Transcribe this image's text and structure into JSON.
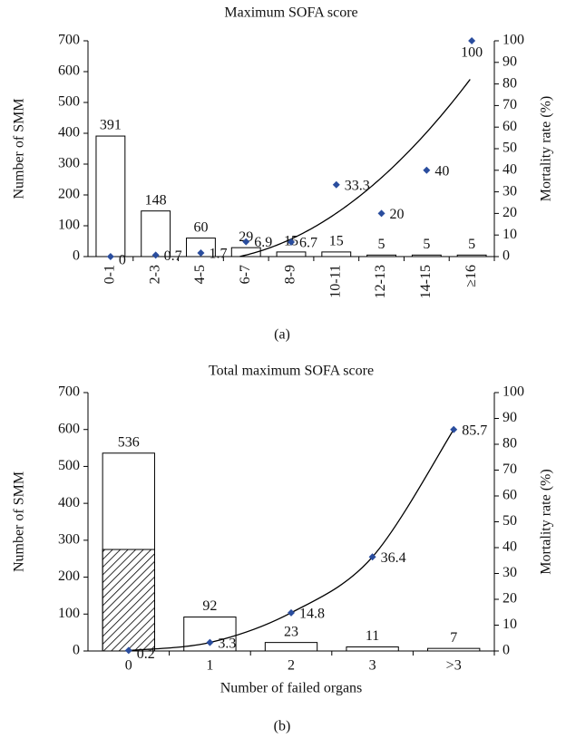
{
  "chart_data": [
    {
      "type": "bar-line",
      "title": "Maximum SOFA score",
      "panel_label": "(a)",
      "categories": [
        "0-1",
        "2-3",
        "4-5",
        "6-7",
        "8-9",
        "10-11",
        "12-13",
        "14-15",
        "≥16"
      ],
      "values": [
        391,
        148,
        60,
        29,
        15,
        15,
        5,
        5,
        5
      ],
      "y2_values": [
        0,
        0.7,
        1.7,
        6.9,
        6.7,
        33.3,
        20,
        40,
        100
      ],
      "ylabel": "Number of SMM",
      "y2label": "Mortality rate (%)",
      "ylim": [
        0,
        700
      ],
      "yticks": [
        0,
        100,
        200,
        300,
        400,
        500,
        600,
        700
      ],
      "y2lim": [
        0,
        100
      ],
      "y2ticks": [
        0,
        10,
        20,
        30,
        40,
        50,
        60,
        70,
        80,
        90,
        100
      ],
      "bar_color": "#ffffff",
      "point_color": "#2a4d9e",
      "line_color": "#000000",
      "line": "polynomial-trendline",
      "x_label_rotation": -90
    },
    {
      "type": "bar-line",
      "title": "Total maximum SOFA score",
      "panel_label": "(b)",
      "categories": [
        "0",
        "1",
        "2",
        "3",
        ">3"
      ],
      "values": [
        536,
        92,
        23,
        11,
        7
      ],
      "hatched_values": [
        275,
        null,
        null,
        null,
        null
      ],
      "y2_values": [
        0.2,
        3.3,
        14.8,
        36.4,
        85.7
      ],
      "xlabel": "Number of failed organs",
      "ylabel": "Number of SMM",
      "y2label": "Mortality rate (%)",
      "ylim": [
        0,
        700
      ],
      "yticks": [
        0,
        100,
        200,
        300,
        400,
        500,
        600,
        700
      ],
      "y2lim": [
        0,
        100
      ],
      "y2ticks": [
        0,
        10,
        20,
        30,
        40,
        50,
        60,
        70,
        80,
        90,
        100
      ],
      "bar_color": "#ffffff",
      "point_color": "#2a4d9e",
      "line_color": "#000000",
      "line": "smooth",
      "x_label_rotation": 0
    }
  ]
}
